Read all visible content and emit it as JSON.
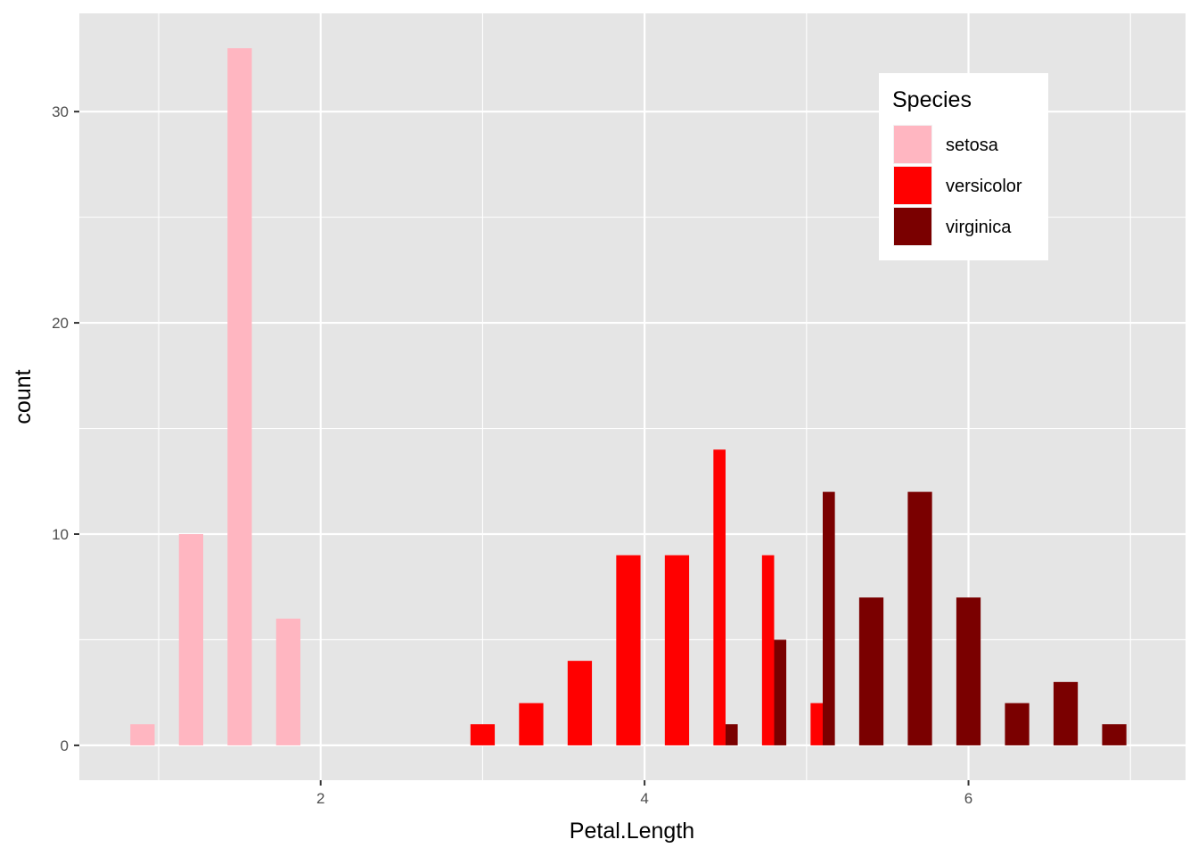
{
  "chart_data": {
    "type": "bar",
    "xlabel": "Petal.Length",
    "ylabel": "count",
    "xlim": [
      0.51,
      7.34
    ],
    "ylim": [
      -1.65,
      34.65
    ],
    "x_ticks": [
      2,
      4,
      6
    ],
    "y_ticks": [
      0,
      10,
      20,
      30
    ],
    "bin_width": 0.3,
    "grid": true,
    "legend": {
      "title": "Species",
      "placement": "top-right inside"
    },
    "series": [
      {
        "name": "setosa",
        "color": "#FFB6C1",
        "points": [
          {
            "x": 0.9,
            "y": 1
          },
          {
            "x": 1.2,
            "y": 10
          },
          {
            "x": 1.5,
            "y": 33
          },
          {
            "x": 1.8,
            "y": 6
          }
        ]
      },
      {
        "name": "versicolor",
        "color": "#FF0000",
        "points": [
          {
            "x": 3.0,
            "y": 1
          },
          {
            "x": 3.3,
            "y": 2
          },
          {
            "x": 3.6,
            "y": 4
          },
          {
            "x": 3.9,
            "y": 9
          },
          {
            "x": 4.2,
            "y": 9
          },
          {
            "x": 4.5,
            "y": 14
          },
          {
            "x": 4.8,
            "y": 9
          },
          {
            "x": 5.1,
            "y": 2
          }
        ]
      },
      {
        "name": "virginica",
        "color": "#7A0000",
        "points": [
          {
            "x": 4.5,
            "y": 1
          },
          {
            "x": 4.8,
            "y": 5
          },
          {
            "x": 5.1,
            "y": 12
          },
          {
            "x": 5.4,
            "y": 7
          },
          {
            "x": 5.7,
            "y": 12
          },
          {
            "x": 6.0,
            "y": 7
          },
          {
            "x": 6.3,
            "y": 2
          },
          {
            "x": 6.6,
            "y": 3
          },
          {
            "x": 6.9,
            "y": 1
          }
        ]
      }
    ]
  }
}
